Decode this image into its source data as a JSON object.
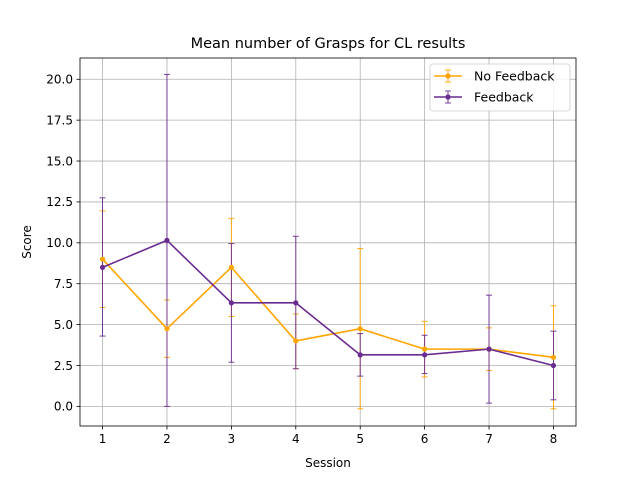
{
  "chart_data": {
    "type": "line",
    "title": "Mean number of Grasps for CL results",
    "xlabel": "Session",
    "ylabel": "Score",
    "x": [
      1,
      2,
      3,
      4,
      5,
      6,
      7,
      8
    ],
    "xticks": [
      "1",
      "2",
      "3",
      "4",
      "5",
      "6",
      "7",
      "8"
    ],
    "yticks": [
      "0.0",
      "2.5",
      "5.0",
      "7.5",
      "10.0",
      "12.5",
      "15.0",
      "17.5",
      "20.0"
    ],
    "ytick_values": [
      0,
      2.5,
      5,
      7.5,
      10,
      12.5,
      15,
      17.5,
      20
    ],
    "xlim": [
      0.65,
      8.35
    ],
    "ylim": [
      -1.2,
      21.3
    ],
    "grid": true,
    "legend_position": "top-right",
    "series": [
      {
        "name": "No Feedback",
        "color": "#ffa500",
        "values": [
          9.0,
          4.75,
          8.5,
          4.0,
          4.75,
          3.5,
          3.5,
          3.0
        ],
        "err_low": [
          6.05,
          3.0,
          5.5,
          2.3,
          -0.15,
          1.8,
          2.2,
          -0.15
        ],
        "err_high": [
          11.95,
          6.5,
          11.5,
          5.65,
          9.65,
          5.2,
          4.8,
          6.15
        ]
      },
      {
        "name": "Feedback",
        "color": "#6a2c91",
        "values": [
          8.5,
          10.15,
          6.33,
          6.33,
          3.15,
          3.15,
          3.5,
          2.5
        ],
        "err_low": [
          4.3,
          0.0,
          2.7,
          2.3,
          1.85,
          2.0,
          0.2,
          0.4
        ],
        "err_high": [
          12.75,
          20.3,
          9.95,
          10.4,
          4.45,
          4.35,
          6.8,
          4.6
        ]
      }
    ]
  }
}
